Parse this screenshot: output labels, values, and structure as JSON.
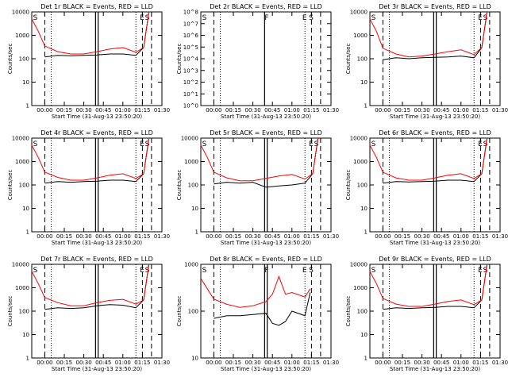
{
  "figure": {
    "xlabel": "Start Time (31-Aug-13 23:50:20)",
    "ylabel": "Counts/sec",
    "x_tick_labels": [
      "00:00",
      "00:15",
      "00:30",
      "00:45",
      "01:00",
      "01:15",
      "01:30"
    ],
    "series_colors": {
      "events": "#000000",
      "lld": "#ff0000"
    }
  },
  "chart_data": [
    {
      "type": "line",
      "title": "Det 1r BLACK = Events, RED = LLD",
      "y_scale": "log",
      "ylim": [
        1,
        10000
      ],
      "y_tick_labels": [
        "1",
        "10",
        "100",
        "1000",
        "10000"
      ],
      "x_minutes": [
        -10,
        -5,
        0,
        10,
        20,
        30,
        40,
        50,
        60,
        70,
        76,
        80
      ],
      "series": [
        {
          "key": "events",
          "values": [
            null,
            null,
            120,
            140,
            135,
            140,
            145,
            160,
            160,
            140,
            300,
            11000
          ]
        },
        {
          "key": "lld",
          "values": [
            5000,
            1500,
            350,
            200,
            160,
            160,
            200,
            260,
            300,
            190,
            300,
            12000
          ]
        }
      ],
      "markers": [
        {
          "label": "S",
          "x": -9
        },
        {
          "label": "E",
          "x": 73
        },
        {
          "label": "S",
          "x": 77
        }
      ],
      "dashed_x": [
        0,
        75,
        82
      ],
      "dotted_x": [
        5,
        70
      ],
      "solid_x": [
        39,
        41
      ]
    },
    {
      "type": "line",
      "title": "Det 2r BLACK = Events, RED = LLD",
      "y_scale": "log",
      "ylim": [
        1,
        100000000
      ],
      "y_tick_labels": [
        "10^0",
        "10^1",
        "10^2",
        "10^3",
        "10^4",
        "10^5",
        "10^6",
        "10^7",
        "10^8"
      ],
      "x_minutes": [],
      "series": [],
      "markers": [
        {
          "label": "S",
          "x": -9
        },
        {
          "label": "F",
          "x": 39
        },
        {
          "label": "E",
          "x": 68
        },
        {
          "label": "S",
          "x": 73
        }
      ],
      "dashed_x": [
        0,
        75,
        82
      ],
      "dotted_x": [
        5,
        70
      ],
      "solid_x": [
        39
      ]
    },
    {
      "type": "line",
      "title": "Det 3r BLACK = Events, RED = LLD",
      "y_scale": "log",
      "ylim": [
        1,
        10000
      ],
      "y_tick_labels": [
        "1",
        "10",
        "100",
        "1000",
        "10000"
      ],
      "x_minutes": [
        -10,
        -5,
        0,
        10,
        20,
        30,
        40,
        50,
        60,
        70,
        76,
        80
      ],
      "series": [
        {
          "key": "events",
          "values": [
            null,
            null,
            90,
            110,
            100,
            110,
            115,
            120,
            130,
            110,
            300,
            11000
          ]
        },
        {
          "key": "lld",
          "values": [
            5000,
            1500,
            280,
            160,
            120,
            130,
            160,
            200,
            240,
            150,
            300,
            12000
          ]
        }
      ],
      "markers": [
        {
          "label": "S",
          "x": -9
        },
        {
          "label": "E",
          "x": 73
        },
        {
          "label": "S",
          "x": 77
        }
      ],
      "dashed_x": [
        0,
        75,
        82
      ],
      "dotted_x": [
        5,
        70
      ],
      "solid_x": [
        39,
        41
      ]
    },
    {
      "type": "line",
      "title": "Det 4r BLACK = Events, RED = LLD",
      "y_scale": "log",
      "ylim": [
        1,
        10000
      ],
      "y_tick_labels": [
        "1",
        "10",
        "100",
        "1000",
        "10000"
      ],
      "x_minutes": [
        -10,
        -5,
        0,
        10,
        20,
        30,
        40,
        50,
        60,
        70,
        76,
        80
      ],
      "series": [
        {
          "key": "events",
          "values": [
            null,
            null,
            120,
            140,
            130,
            140,
            145,
            160,
            160,
            140,
            300,
            11000
          ]
        },
        {
          "key": "lld",
          "values": [
            5000,
            1500,
            350,
            210,
            160,
            160,
            200,
            260,
            300,
            190,
            300,
            12000
          ]
        }
      ],
      "markers": [
        {
          "label": "S",
          "x": -9
        },
        {
          "label": "E",
          "x": 73
        },
        {
          "label": "S",
          "x": 77
        }
      ],
      "dashed_x": [
        0,
        75,
        82
      ],
      "dotted_x": [
        5,
        70
      ],
      "solid_x": [
        39,
        41
      ]
    },
    {
      "type": "line",
      "title": "Det 5r BLACK = Events, RED = LLD",
      "y_scale": "log",
      "ylim": [
        1,
        10000
      ],
      "y_tick_labels": [
        "1",
        "10",
        "100",
        "1000",
        "10000"
      ],
      "x_minutes": [
        -10,
        -5,
        0,
        10,
        20,
        30,
        40,
        50,
        60,
        70,
        76,
        80
      ],
      "series": [
        {
          "key": "events",
          "values": [
            null,
            null,
            110,
            130,
            120,
            130,
            80,
            90,
            100,
            120,
            300,
            11000
          ]
        },
        {
          "key": "lld",
          "values": [
            5000,
            1500,
            350,
            200,
            150,
            150,
            190,
            240,
            280,
            180,
            300,
            12000
          ]
        }
      ],
      "markers": [
        {
          "label": "S",
          "x": -9
        },
        {
          "label": "E",
          "x": 73
        },
        {
          "label": "S",
          "x": 77
        }
      ],
      "dashed_x": [
        0,
        75,
        82
      ],
      "dotted_x": [
        5,
        70
      ],
      "solid_x": [
        39,
        41
      ]
    },
    {
      "type": "line",
      "title": "Det 6r BLACK = Events, RED = LLD",
      "y_scale": "log",
      "ylim": [
        1,
        10000
      ],
      "y_tick_labels": [
        "1",
        "10",
        "100",
        "1000",
        "10000"
      ],
      "x_minutes": [
        -10,
        -5,
        0,
        10,
        20,
        30,
        40,
        50,
        60,
        70,
        76,
        80
      ],
      "series": [
        {
          "key": "events",
          "values": [
            null,
            null,
            120,
            140,
            135,
            140,
            145,
            160,
            160,
            140,
            300,
            11000
          ]
        },
        {
          "key": "lld",
          "values": [
            5000,
            1500,
            350,
            200,
            160,
            160,
            200,
            260,
            300,
            190,
            300,
            12000
          ]
        }
      ],
      "markers": [
        {
          "label": "S",
          "x": -9
        },
        {
          "label": "E",
          "x": 73
        },
        {
          "label": "S",
          "x": 77
        }
      ],
      "dashed_x": [
        0,
        75,
        82
      ],
      "dotted_x": [
        5,
        70
      ],
      "solid_x": [
        39,
        41
      ]
    },
    {
      "type": "line",
      "title": "Det 7r BLACK = Events, RED = LLD",
      "y_scale": "log",
      "ylim": [
        1,
        10000
      ],
      "y_tick_labels": [
        "1",
        "10",
        "100",
        "1000",
        "10000"
      ],
      "x_minutes": [
        -10,
        -5,
        0,
        10,
        20,
        30,
        40,
        50,
        60,
        70,
        76,
        80
      ],
      "series": [
        {
          "key": "events",
          "values": [
            null,
            null,
            120,
            140,
            130,
            140,
            170,
            190,
            180,
            140,
            300,
            11000
          ]
        },
        {
          "key": "lld",
          "values": [
            5000,
            1500,
            380,
            230,
            170,
            170,
            230,
            290,
            320,
            200,
            300,
            12000
          ]
        }
      ],
      "markers": [
        {
          "label": "S",
          "x": -9
        },
        {
          "label": "E",
          "x": 73
        },
        {
          "label": "S",
          "x": 77
        }
      ],
      "dashed_x": [
        0,
        75,
        82
      ],
      "dotted_x": [
        5,
        70
      ],
      "solid_x": [
        39,
        41
      ]
    },
    {
      "type": "line",
      "title": "Det 8r BLACK = Events, RED = LLD",
      "y_scale": "log",
      "ylim": [
        10,
        1000
      ],
      "y_tick_labels": [
        "10",
        "100",
        "1000"
      ],
      "x_minutes": [
        -10,
        -5,
        0,
        10,
        20,
        30,
        40,
        45,
        50,
        55,
        60,
        70,
        74
      ],
      "series": [
        {
          "key": "events",
          "values": [
            null,
            null,
            70,
            80,
            80,
            85,
            90,
            55,
            50,
            60,
            100,
            80,
            250
          ]
        },
        {
          "key": "lld",
          "values": [
            500,
            300,
            180,
            140,
            120,
            130,
            160,
            230,
            550,
            230,
            250,
            200,
            300
          ]
        }
      ],
      "markers": [
        {
          "label": "S",
          "x": -9
        },
        {
          "label": "F",
          "x": 39
        },
        {
          "label": "E",
          "x": 68
        },
        {
          "label": "S",
          "x": 73
        }
      ],
      "dashed_x": [
        0,
        75,
        82
      ],
      "dotted_x": [
        5,
        70
      ],
      "solid_x": [
        39,
        41
      ]
    },
    {
      "type": "line",
      "title": "Det 9r BLACK = Events, RED = LLD",
      "y_scale": "log",
      "ylim": [
        1,
        10000
      ],
      "y_tick_labels": [
        "1",
        "10",
        "100",
        "1000",
        "10000"
      ],
      "x_minutes": [
        -10,
        -5,
        0,
        10,
        20,
        30,
        40,
        50,
        60,
        70,
        76,
        80
      ],
      "series": [
        {
          "key": "events",
          "values": [
            null,
            null,
            120,
            140,
            130,
            140,
            145,
            160,
            160,
            140,
            300,
            11000
          ]
        },
        {
          "key": "lld",
          "values": [
            5000,
            1500,
            350,
            200,
            160,
            160,
            200,
            260,
            300,
            190,
            300,
            12000
          ]
        }
      ],
      "markers": [
        {
          "label": "S",
          "x": -9
        },
        {
          "label": "E",
          "x": 73
        },
        {
          "label": "S",
          "x": 77
        }
      ],
      "dashed_x": [
        0,
        75,
        82
      ],
      "dotted_x": [
        5,
        70
      ],
      "solid_x": [
        39,
        41
      ]
    }
  ]
}
